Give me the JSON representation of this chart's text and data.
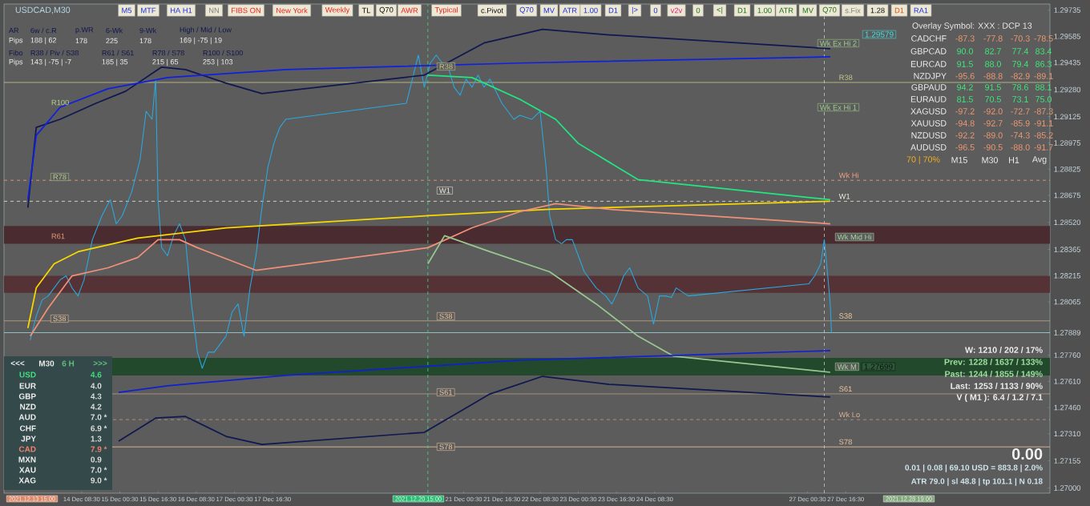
{
  "chart_data": {
    "type": "line",
    "title": "USDCAD,M30",
    "xlim": [
      "2021-12-13T00:00",
      "2021-12-31T06:00"
    ],
    "ylim": [
      1.2697,
      1.2977
    ],
    "xticks": [
      {
        "value": "2021-12-14T08:30",
        "label": "14 Dec 08:30"
      },
      {
        "value": "2021-12-15T00:30",
        "label": "15 Dec 00:30"
      },
      {
        "value": "2021-12-15T16:30",
        "label": "15 Dec 16:30"
      },
      {
        "value": "2021-12-16T08:30",
        "label": "16 Dec 08:30"
      },
      {
        "value": "2021-12-17T00:30",
        "label": "17 Dec 00:30"
      },
      {
        "value": "2021-12-17T16:30",
        "label": "17 Dec 16:30"
      },
      {
        "value": "2021-12-21T00:30",
        "label": "21 Dec 00:30"
      },
      {
        "value": "2021-12-21T16:30",
        "label": "21 Dec 16:30"
      },
      {
        "value": "2021-12-22T08:30",
        "label": "22 Dec 08:30"
      },
      {
        "value": "2021-12-23T00:30",
        "label": "23 Dec 00:30"
      },
      {
        "value": "2021-12-23T16:30",
        "label": "23 Dec 16:30"
      },
      {
        "value": "2021-12-24T08:30",
        "label": "24 Dec 08:30"
      },
      {
        "value": "2021-12-27T00:30",
        "label": "27 Dec 00:30"
      },
      {
        "value": "2021-12-27T16:30",
        "label": "27 Dec 16:30"
      }
    ],
    "yticks": [
      {
        "value": 1.27,
        "label": "1.27000"
      },
      {
        "value": 1.27155,
        "label": "1.27155"
      },
      {
        "value": 1.2731,
        "label": "1.27310"
      },
      {
        "value": 1.2746,
        "label": "1.27460"
      },
      {
        "value": 1.2761,
        "label": "1.27610"
      },
      {
        "value": 1.2776,
        "label": "1.27760"
      },
      {
        "value": 1.27889,
        "label": "1.27889"
      },
      {
        "value": 1.28065,
        "label": "1.28065"
      },
      {
        "value": 1.28215,
        "label": "1.28215"
      },
      {
        "value": 1.28365,
        "label": "1.28365"
      },
      {
        "value": 1.2852,
        "label": "1.28520"
      },
      {
        "value": 1.28675,
        "label": "1.28675"
      },
      {
        "value": 1.28825,
        "label": "1.28825"
      },
      {
        "value": 1.28975,
        "label": "1.28975"
      },
      {
        "value": 1.29125,
        "label": "1.29125"
      },
      {
        "value": 1.2928,
        "label": "1.29280"
      },
      {
        "value": 1.29435,
        "label": "1.29435"
      },
      {
        "value": 1.29585,
        "label": "1.29585"
      },
      {
        "value": 1.29735,
        "label": "1.29735"
      }
    ],
    "series": [
      {
        "color": "#2aa9e0",
        "x": [
          "2021-12-13T11:00",
          "2021-12-13T13:30",
          "2021-12-13T16:00",
          "2021-12-13T18:30",
          "2021-12-13T21:00",
          "2021-12-13T23:30",
          "2021-12-14T02:00",
          "2021-12-14T04:30",
          "2021-12-14T07:00",
          "2021-12-14T09:30",
          "2021-12-14T13:00",
          "2021-12-14T17:00",
          "2021-12-14T20:30",
          "2021-12-14T23:00",
          "2021-12-15T01:30",
          "2021-12-15T05:30",
          "2021-12-15T09:00",
          "2021-12-15T11:30",
          "2021-12-15T14:00",
          "2021-12-15T15:30",
          "2021-12-15T16:30",
          "2021-12-15T18:00",
          "2021-12-15T20:30",
          "2021-12-15T23:00",
          "2021-12-16T01:30",
          "2021-12-16T04:00",
          "2021-12-16T06:30",
          "2021-12-16T09:00",
          "2021-12-16T11:00",
          "2021-12-16T13:30",
          "2021-12-16T16:00",
          "2021-12-16T18:30",
          "2021-12-16T21:00",
          "2021-12-16T23:30",
          "2021-12-17T02:00",
          "2021-12-17T04:30",
          "2021-12-17T07:00",
          "2021-12-17T09:30",
          "2021-12-17T12:00",
          "2021-12-17T14:30",
          "2021-12-17T17:00",
          "2021-12-17T19:30",
          "2021-12-17T22:00",
          "2021-12-20T00:30",
          "2021-12-20T03:00",
          "2021-12-20T05:30",
          "2021-12-20T08:00",
          "2021-12-20T10:30",
          "2021-12-20T13:00",
          "2021-12-20T15:30",
          "2021-12-20T18:00",
          "2021-12-20T20:30",
          "2021-12-20T23:00",
          "2021-12-21T01:30",
          "2021-12-21T04:00",
          "2021-12-21T06:30",
          "2021-12-21T09:00",
          "2021-12-21T11:30",
          "2021-12-21T14:00",
          "2021-12-21T16:30",
          "2021-12-21T19:00",
          "2021-12-21T21:30",
          "2021-12-22T00:00",
          "2021-12-22T05:00",
          "2021-12-22T08:30",
          "2021-12-22T11:00",
          "2021-12-22T12:30",
          "2021-12-22T15:00",
          "2021-12-22T17:30",
          "2021-12-22T19:30",
          "2021-12-22T22:00",
          "2021-12-23T00:30",
          "2021-12-23T03:00",
          "2021-12-23T05:30",
          "2021-12-23T08:00",
          "2021-12-23T12:00",
          "2021-12-23T14:30",
          "2021-12-23T17:00",
          "2021-12-23T19:30",
          "2021-12-23T22:00",
          "2021-12-24T01:30",
          "2021-12-24T05:30",
          "2021-12-24T08:00",
          "2021-12-24T10:30",
          "2021-12-24T13:00",
          "2021-12-24T15:30",
          "2021-12-24T17:30",
          "2021-12-24T20:00",
          "2021-12-24T22:30",
          "2021-12-27T01:00",
          "2021-12-27T03:30",
          "2021-12-27T06:00",
          "2021-12-27T07:30",
          "2021-12-27T08:30",
          "2021-12-27T10:00",
          "2021-12-27T10:30"
        ],
        "values": [
          1.27846,
          1.27984,
          1.28076,
          1.28099,
          1.28145,
          1.28191,
          1.28214,
          1.28145,
          1.28099,
          1.28191,
          1.28421,
          1.28558,
          1.2865,
          1.28512,
          1.28558,
          1.28696,
          1.2888,
          1.29156,
          1.2911,
          1.2934,
          1.2865,
          1.28375,
          1.28329,
          1.28444,
          1.28512,
          1.28421,
          1.28053,
          1.27777,
          1.27685,
          1.27777,
          1.27777,
          1.27823,
          1.27869,
          1.28007,
          1.28053,
          1.27869,
          1.28145,
          1.28329,
          1.28604,
          1.28834,
          1.28972,
          1.29064,
          1.2911,
          1.29202,
          1.2934,
          1.29478,
          1.29294,
          1.29432,
          1.29478,
          1.29432,
          1.29409,
          1.29294,
          1.29248,
          1.2934,
          1.29294,
          1.29363,
          1.29294,
          1.2934,
          1.29271,
          1.29202,
          1.29156,
          1.2911,
          1.29133,
          1.2911,
          1.29156,
          1.28834,
          1.28558,
          1.28421,
          1.28398,
          1.28421,
          1.28421,
          1.28329,
          1.28237,
          1.28191,
          1.28145,
          1.28099,
          1.28053,
          1.28122,
          1.28214,
          1.2826,
          1.28145,
          1.28099,
          1.27938,
          1.28099,
          1.28099,
          1.2809,
          1.28145,
          1.28122,
          1.28099,
          1.28168,
          1.28214,
          1.28283,
          1.28421,
          1.28283,
          1.28053,
          1.27889
        ]
      },
      {
        "color": "#f8d800",
        "x": [
          "2021-12-13T10:00",
          "2021-12-13T13:30",
          "2021-12-13T21:00",
          "2021-12-14T07:00",
          "2021-12-15T08:00",
          "2021-12-16T21:00",
          "2021-12-20T09:30",
          "2021-12-22T12:30",
          "2021-12-27T10:00"
        ],
        "values": [
          1.27915,
          1.28145,
          1.28283,
          1.28352,
          1.2843,
          1.28489,
          1.28558,
          1.28595,
          1.28641
        ]
      },
      {
        "color": "#f09078",
        "x": [
          "2021-12-13T11:00",
          "2021-12-13T18:30",
          "2021-12-14T04:30",
          "2021-12-14T19:30",
          "2021-12-15T08:00",
          "2021-12-15T16:30",
          "2021-12-16T01:30",
          "2021-12-16T09:00",
          "2021-12-17T09:30",
          "2021-12-20T09:30",
          "2021-12-21T04:00",
          "2021-12-22T00:00",
          "2021-12-22T15:00",
          "2021-12-23T13:30",
          "2021-12-27T10:00"
        ],
        "values": [
          1.27869,
          1.2803,
          1.28214,
          1.2826,
          1.28319,
          1.28421,
          1.28421,
          1.28375,
          1.28246,
          1.28375,
          1.28489,
          1.28581,
          1.28627,
          1.28595,
          1.28512
        ]
      },
      {
        "color": "#20e880",
        "x": [
          "2021-12-20T09:30",
          "2021-12-21T04:00",
          "2021-12-22T00:00",
          "2021-12-22T15:00",
          "2021-12-23T00:30",
          "2021-12-24T01:30",
          "2021-12-27T10:00"
        ],
        "values": [
          1.29363,
          1.29349,
          1.29225,
          1.2911,
          1.28972,
          1.28765,
          1.2865
        ]
      },
      {
        "color": "#98c890",
        "x": [
          "2021-12-20T09:30",
          "2021-12-20T16:30",
          "2021-12-21T11:30",
          "2021-12-22T12:30",
          "2021-12-23T08:00",
          "2021-12-24T01:30",
          "2021-12-24T16:30",
          "2021-12-27T10:00"
        ],
        "values": [
          1.28283,
          1.28444,
          1.28352,
          1.28237,
          1.28053,
          1.27869,
          1.27754,
          1.27662
        ]
      },
      {
        "color": "#101850",
        "x": [
          "2021-12-13T10:00",
          "2021-12-13T13:30",
          "2021-12-13T23:30",
          "2021-12-14T14:30",
          "2021-12-15T03:00",
          "2021-12-15T18:00",
          "2021-12-16T04:00",
          "2021-12-16T21:00",
          "2021-12-17T12:00",
          "2021-12-20T08:00",
          "2021-12-21T09:00",
          "2021-12-22T09:30",
          "2021-12-23T13:30",
          "2021-12-27T10:00"
        ],
        "values": [
          1.28604,
          1.29064,
          1.2911,
          1.29202,
          1.29271,
          1.29409,
          1.29395,
          1.29317,
          1.29257,
          1.29363,
          1.29547,
          1.29625,
          1.29593,
          1.29514
        ]
      },
      {
        "color": "#1020e0",
        "x": [
          "2021-12-13T10:00",
          "2021-12-13T13:30",
          "2021-12-13T23:30",
          "2021-12-14T19:30",
          "2021-12-15T20:30",
          "2021-12-17T22:00",
          "2021-12-22T00:00",
          "2021-12-27T10:00"
        ],
        "values": [
          1.2865,
          1.29018,
          1.29179,
          1.29285,
          1.29349,
          1.29395,
          1.29432,
          1.29468
        ]
      },
      {
        "color": "#1020d0",
        "x": [
          "2021-12-15T00:00",
          "2021-12-15T20:30",
          "2021-12-17T22:00",
          "2021-12-22T00:00",
          "2021-12-27T10:00"
        ],
        "values": [
          1.27547,
          1.27585,
          1.27644,
          1.27731,
          1.27786
        ]
      },
      {
        "color": "#101850",
        "x": [
          "2021-12-15T00:00",
          "2021-12-15T15:30",
          "2021-12-16T04:00",
          "2021-12-16T21:00",
          "2021-12-17T12:00",
          "2021-12-20T08:00",
          "2021-12-21T11:30",
          "2021-12-22T09:30",
          "2021-12-23T13:30",
          "2021-12-27T10:00"
        ],
        "values": [
          1.27268,
          1.274,
          1.27409,
          1.27295,
          1.27249,
          1.27318,
          1.27538,
          1.27639,
          1.27593,
          1.2752
        ]
      }
    ],
    "bands": [
      {
        "axis": "y",
        "from": 1.28398,
        "to": 1.28499,
        "color": "#4a2c30"
      },
      {
        "axis": "y",
        "from": 1.28117,
        "to": 1.28214,
        "color": "#553236"
      },
      {
        "axis": "y",
        "from": 1.27644,
        "to": 1.27745,
        "color": "#22492c"
      }
    ],
    "ref_lines": [
      {
        "axis": "y",
        "value": 1.29321,
        "label": "R38",
        "color": "#c8c890",
        "line_style": "solid"
      },
      {
        "axis": "y",
        "value": 1.28761,
        "label": "Wk Hi",
        "color": "#f0a080",
        "line_style": "dashed"
      },
      {
        "axis": "y",
        "value": 1.28641,
        "label": "W1",
        "color": "#f0f0e0",
        "line_style": "dashed"
      },
      {
        "axis": "y",
        "value": 1.27956,
        "label": "S38",
        "color": "#f0c8a0",
        "line_style": "solid"
      },
      {
        "axis": "y",
        "value": 1.27538,
        "label": "S61",
        "color": "#f0c8a0",
        "line_style": "solid"
      },
      {
        "axis": "y",
        "value": 1.27391,
        "label": "Wk Lo",
        "color": "#e0b090",
        "line_style": "dashed"
      },
      {
        "axis": "y",
        "value": 1.27235,
        "label": "S78",
        "color": "#f0c8a0",
        "line_style": "solid"
      },
      {
        "axis": "y",
        "value": 1.27889,
        "color": "#a0e0e0",
        "line_style": "solid"
      },
      {
        "axis": "x",
        "value": "2021-12-20T09:30",
        "color": "#40e080",
        "line_style": "dashed"
      },
      {
        "axis": "x",
        "value": "2021-12-27T07:30",
        "color": "#d0d0d0",
        "line_style": "dashed"
      }
    ],
    "annotations": [
      "M5",
      "MTF",
      "HA H1",
      "NN",
      "FIBS ON",
      "New York",
      "Weekly",
      "TL",
      "Q70",
      "AWR",
      "Typical",
      "c.Pivot",
      "Q70",
      "MV",
      "ATR",
      "1.00",
      "D1",
      "|>",
      "0",
      "v2v",
      "0",
      "<|",
      "D1",
      "1.00",
      "ATR",
      "MV",
      "Q70",
      "s.Fix",
      "1.28",
      "D1",
      "RA1",
      "AR",
      "6w / c.R",
      "p.WR",
      "6-Wk",
      "9-Wk",
      "High / Mid / Low",
      "Pips",
      "188 | 62",
      "178",
      "225",
      "178",
      "169  |  -75  |  19",
      "Fibo",
      "R38 / Piv / S38",
      "R61 / S61",
      "R78 / S78",
      "R100 / S100",
      "Pips",
      "143  |  -75  |  -7",
      "185  |  35",
      "215  |  65",
      "253  |  103",
      "Overlay Symbol: XXX : DCP 13",
      "CADCHF",
      "-87.3",
      "-77.8",
      "-70.3",
      "-78.5",
      "GBPCAD",
      "90.0",
      "82.7",
      "77.4",
      "83.4",
      "EURCAD",
      "91.5",
      "88.0",
      "79.4",
      "86.3",
      "NZDJPY",
      "-95.6",
      "-88.8",
      "-82.9",
      "-89.1",
      "GBPAUD",
      "94.2",
      "91.5",
      "78.6",
      "88.1",
      "EURAUD",
      "81.5",
      "70.5",
      "73.1",
      "75.0",
      "XAGUSD",
      "-97.2",
      "-92.0",
      "-72.7",
      "-87.3",
      "XAUUSD",
      "-94.8",
      "-92.7",
      "-85.9",
      "-91.1",
      "NZDUSD",
      "-92.2",
      "-89.0",
      "-74.3",
      "-85.2",
      "AUDUSD",
      "-96.5",
      "-90.5",
      "-88.0",
      "-91.7",
      "70 | 70%",
      "M15",
      "M30",
      "H1",
      "Avg",
      "<<<",
      "M30",
      "6 H",
      ">>>",
      "USD",
      "4.6",
      "EUR",
      "4.0",
      "GBP",
      "4.3",
      "NZD",
      "4.2",
      "AUD",
      "7.0 *",
      "CHF",
      "6.9 *",
      "JPY",
      "1.3",
      "CAD",
      "7.9 *",
      "MXN",
      "0.9",
      "XAU",
      "7.0 *",
      "XAG",
      "9.0 *",
      "W: 1210 / 202 / 17%",
      "Prev: 1228 / 1637 / 133%",
      "Past: 1244 / 1855 / 149%",
      "Last: 1253 / 1133 / 90%",
      "V ( M1 ): 6.4 / 1.2 / 7.1",
      "0.00",
      "0.01  |  0.08  |  69.10 USD = 883.8  |  2.0%",
      "ATR 79.0  | sl 48.8  |  tp 101.1  |  N 0.18",
      "R100",
      "R61",
      "1.29579",
      "1.27699",
      "2021.12.13 15:00",
      "2021.12.20 15:00",
      "2021.12.28 19:00",
      "R78",
      "S38",
      "R38",
      "W1",
      "S38",
      "S61",
      "S78",
      "Wk Ex Hi 2",
      "Wk Ex Hi 1",
      "Wk Mid Hi",
      "Wk M"
    ]
  }
}
